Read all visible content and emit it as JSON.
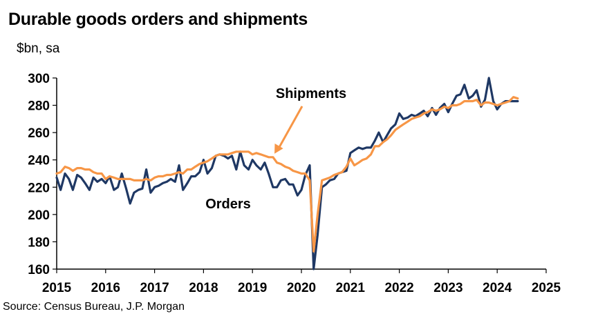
{
  "chart_data": {
    "type": "line",
    "title": "Durable goods orders and shipments",
    "subtitle": "$bn, sa",
    "source": "Source: Census Bureau, J.P. Morgan",
    "x_label": "",
    "y_label": "",
    "xlim": [
      2015,
      2025
    ],
    "ylim": [
      160,
      300
    ],
    "y_ticks": [
      160,
      180,
      200,
      220,
      240,
      260,
      280,
      300
    ],
    "x_ticks": [
      2015,
      2016,
      2017,
      2018,
      2019,
      2020,
      2021,
      2022,
      2023,
      2024,
      2025
    ],
    "grid": false,
    "series": [
      {
        "name": "Orders",
        "color": "#1f3864",
        "label": "Orders",
        "points": [
          [
            2015.0,
            227
          ],
          [
            2015.08,
            218
          ],
          [
            2015.17,
            230
          ],
          [
            2015.25,
            226
          ],
          [
            2015.33,
            218
          ],
          [
            2015.42,
            229
          ],
          [
            2015.5,
            227
          ],
          [
            2015.58,
            223
          ],
          [
            2015.67,
            218
          ],
          [
            2015.75,
            227
          ],
          [
            2015.83,
            224
          ],
          [
            2015.92,
            226
          ],
          [
            2016.0,
            223
          ],
          [
            2016.08,
            228
          ],
          [
            2016.17,
            218
          ],
          [
            2016.25,
            220
          ],
          [
            2016.33,
            230
          ],
          [
            2016.42,
            219
          ],
          [
            2016.5,
            208
          ],
          [
            2016.58,
            216
          ],
          [
            2016.67,
            218
          ],
          [
            2016.75,
            219
          ],
          [
            2016.83,
            233
          ],
          [
            2016.92,
            216
          ],
          [
            2017.0,
            220
          ],
          [
            2017.08,
            221
          ],
          [
            2017.17,
            223
          ],
          [
            2017.25,
            224
          ],
          [
            2017.33,
            226
          ],
          [
            2017.42,
            224
          ],
          [
            2017.5,
            236
          ],
          [
            2017.58,
            218
          ],
          [
            2017.67,
            223
          ],
          [
            2017.75,
            228
          ],
          [
            2017.83,
            228
          ],
          [
            2017.92,
            231
          ],
          [
            2018.0,
            240
          ],
          [
            2018.08,
            230
          ],
          [
            2018.17,
            234
          ],
          [
            2018.25,
            243
          ],
          [
            2018.33,
            244
          ],
          [
            2018.42,
            243
          ],
          [
            2018.5,
            241
          ],
          [
            2018.58,
            243
          ],
          [
            2018.67,
            233
          ],
          [
            2018.75,
            246
          ],
          [
            2018.83,
            236
          ],
          [
            2018.92,
            233
          ],
          [
            2019.0,
            240
          ],
          [
            2019.08,
            236
          ],
          [
            2019.17,
            233
          ],
          [
            2019.25,
            238
          ],
          [
            2019.33,
            230
          ],
          [
            2019.42,
            220
          ],
          [
            2019.5,
            220
          ],
          [
            2019.58,
            225
          ],
          [
            2019.67,
            226
          ],
          [
            2019.75,
            222
          ],
          [
            2019.83,
            222
          ],
          [
            2019.92,
            214
          ],
          [
            2020.0,
            218
          ],
          [
            2020.08,
            229
          ],
          [
            2020.17,
            236
          ],
          [
            2020.25,
            160
          ],
          [
            2020.33,
            185
          ],
          [
            2020.42,
            220
          ],
          [
            2020.5,
            222
          ],
          [
            2020.58,
            225
          ],
          [
            2020.67,
            226
          ],
          [
            2020.75,
            230
          ],
          [
            2020.83,
            231
          ],
          [
            2020.92,
            232
          ],
          [
            2021.0,
            245
          ],
          [
            2021.08,
            247
          ],
          [
            2021.17,
            249
          ],
          [
            2021.25,
            248
          ],
          [
            2021.33,
            249
          ],
          [
            2021.42,
            249
          ],
          [
            2021.5,
            254
          ],
          [
            2021.58,
            260
          ],
          [
            2021.67,
            253
          ],
          [
            2021.75,
            258
          ],
          [
            2021.83,
            263
          ],
          [
            2021.92,
            266
          ],
          [
            2022.0,
            274
          ],
          [
            2022.08,
            270
          ],
          [
            2022.17,
            271
          ],
          [
            2022.25,
            273
          ],
          [
            2022.33,
            272
          ],
          [
            2022.42,
            274
          ],
          [
            2022.5,
            276
          ],
          [
            2022.58,
            272
          ],
          [
            2022.67,
            278
          ],
          [
            2022.75,
            273
          ],
          [
            2022.83,
            278
          ],
          [
            2022.92,
            281
          ],
          [
            2023.0,
            275
          ],
          [
            2023.08,
            281
          ],
          [
            2023.17,
            287
          ],
          [
            2023.25,
            288
          ],
          [
            2023.33,
            295
          ],
          [
            2023.42,
            285
          ],
          [
            2023.5,
            287
          ],
          [
            2023.58,
            291
          ],
          [
            2023.67,
            279
          ],
          [
            2023.75,
            284
          ],
          [
            2023.83,
            300
          ],
          [
            2023.92,
            283
          ],
          [
            2024.0,
            277
          ],
          [
            2024.08,
            281
          ],
          [
            2024.17,
            283
          ],
          [
            2024.25,
            283
          ],
          [
            2024.33,
            283
          ],
          [
            2024.42,
            283
          ]
        ]
      },
      {
        "name": "Shipments",
        "color": "#f79646",
        "label": "Shipments",
        "points": [
          [
            2015.0,
            230
          ],
          [
            2015.08,
            231
          ],
          [
            2015.17,
            235
          ],
          [
            2015.25,
            234
          ],
          [
            2015.33,
            232
          ],
          [
            2015.42,
            234
          ],
          [
            2015.5,
            234
          ],
          [
            2015.58,
            233
          ],
          [
            2015.67,
            233
          ],
          [
            2015.75,
            231
          ],
          [
            2015.83,
            230
          ],
          [
            2015.92,
            230
          ],
          [
            2016.0,
            226
          ],
          [
            2016.08,
            228
          ],
          [
            2016.17,
            227
          ],
          [
            2016.25,
            226
          ],
          [
            2016.33,
            226
          ],
          [
            2016.42,
            226
          ],
          [
            2016.5,
            226
          ],
          [
            2016.58,
            225
          ],
          [
            2016.67,
            225
          ],
          [
            2016.75,
            225
          ],
          [
            2016.83,
            226
          ],
          [
            2016.92,
            225
          ],
          [
            2017.0,
            227
          ],
          [
            2017.08,
            228
          ],
          [
            2017.17,
            228
          ],
          [
            2017.25,
            229
          ],
          [
            2017.33,
            229
          ],
          [
            2017.42,
            230
          ],
          [
            2017.5,
            231
          ],
          [
            2017.58,
            230
          ],
          [
            2017.67,
            233
          ],
          [
            2017.75,
            233
          ],
          [
            2017.83,
            235
          ],
          [
            2017.92,
            237
          ],
          [
            2018.0,
            238
          ],
          [
            2018.08,
            239
          ],
          [
            2018.17,
            241
          ],
          [
            2018.25,
            243
          ],
          [
            2018.33,
            244
          ],
          [
            2018.42,
            244
          ],
          [
            2018.5,
            244
          ],
          [
            2018.58,
            245
          ],
          [
            2018.67,
            246
          ],
          [
            2018.75,
            246
          ],
          [
            2018.83,
            246
          ],
          [
            2018.92,
            246
          ],
          [
            2019.0,
            244
          ],
          [
            2019.08,
            245
          ],
          [
            2019.17,
            244
          ],
          [
            2019.25,
            243
          ],
          [
            2019.33,
            242
          ],
          [
            2019.42,
            242
          ],
          [
            2019.5,
            238
          ],
          [
            2019.58,
            237
          ],
          [
            2019.67,
            235
          ],
          [
            2019.75,
            234
          ],
          [
            2019.83,
            232
          ],
          [
            2019.92,
            231
          ],
          [
            2020.0,
            230
          ],
          [
            2020.08,
            230
          ],
          [
            2020.17,
            225
          ],
          [
            2020.25,
            173
          ],
          [
            2020.33,
            200
          ],
          [
            2020.42,
            225
          ],
          [
            2020.5,
            226
          ],
          [
            2020.58,
            227
          ],
          [
            2020.67,
            229
          ],
          [
            2020.75,
            230
          ],
          [
            2020.83,
            231
          ],
          [
            2020.92,
            235
          ],
          [
            2021.0,
            241
          ],
          [
            2021.08,
            236
          ],
          [
            2021.17,
            238
          ],
          [
            2021.25,
            240
          ],
          [
            2021.33,
            241
          ],
          [
            2021.42,
            244
          ],
          [
            2021.5,
            250
          ],
          [
            2021.58,
            250
          ],
          [
            2021.67,
            253
          ],
          [
            2021.75,
            255
          ],
          [
            2021.83,
            258
          ],
          [
            2021.92,
            262
          ],
          [
            2022.0,
            264
          ],
          [
            2022.08,
            266
          ],
          [
            2022.17,
            268
          ],
          [
            2022.25,
            270
          ],
          [
            2022.33,
            271
          ],
          [
            2022.42,
            272
          ],
          [
            2022.5,
            274
          ],
          [
            2022.58,
            275
          ],
          [
            2022.67,
            277
          ],
          [
            2022.75,
            276
          ],
          [
            2022.83,
            277
          ],
          [
            2022.92,
            279
          ],
          [
            2023.0,
            278
          ],
          [
            2023.08,
            280
          ],
          [
            2023.17,
            280
          ],
          [
            2023.25,
            281
          ],
          [
            2023.33,
            283
          ],
          [
            2023.42,
            283
          ],
          [
            2023.5,
            283
          ],
          [
            2023.58,
            284
          ],
          [
            2023.67,
            280
          ],
          [
            2023.75,
            282
          ],
          [
            2023.83,
            282
          ],
          [
            2023.92,
            281
          ],
          [
            2024.0,
            280
          ],
          [
            2024.08,
            281
          ],
          [
            2024.17,
            282
          ],
          [
            2024.25,
            283
          ],
          [
            2024.33,
            286
          ],
          [
            2024.42,
            285
          ]
        ]
      }
    ],
    "annotations": [
      {
        "text": "Shipments",
        "points_to": [
          2019.45,
          243
        ]
      },
      {
        "text": "Orders"
      }
    ]
  }
}
